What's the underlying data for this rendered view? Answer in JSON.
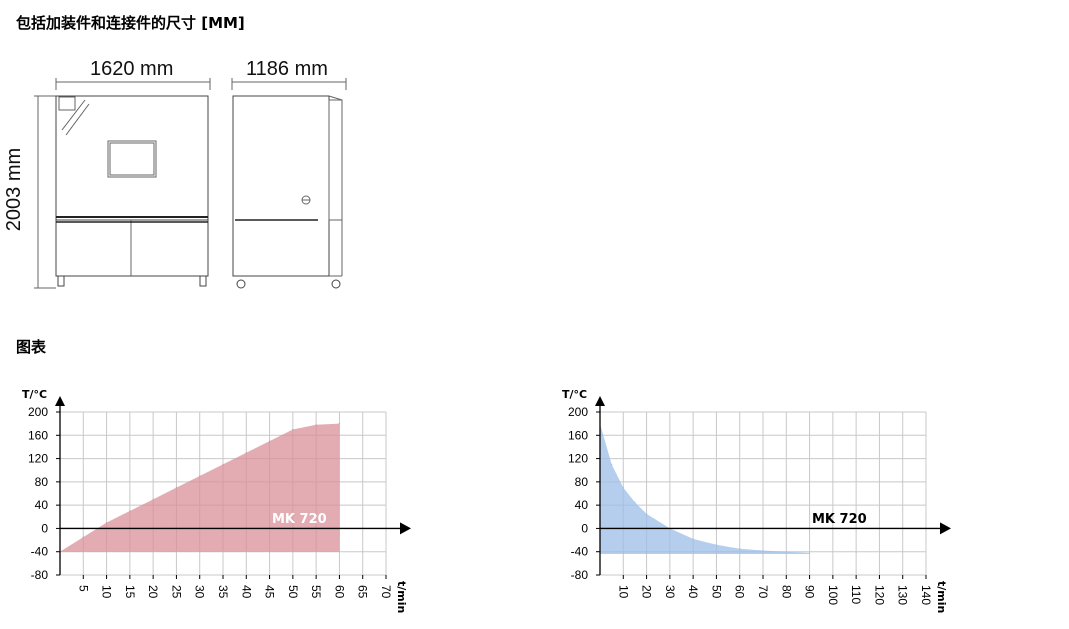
{
  "section_titles": {
    "dimensions": "包括加装件和连接件的尺寸 [MM]",
    "charts": "图表"
  },
  "dimensions": {
    "width": "1620 mm",
    "depth": "1186 mm",
    "height": "2003 mm"
  },
  "colors": {
    "heating": "#d98f98",
    "cooling": "#9ebde8",
    "grid": "#c8c8c8"
  },
  "chart_data": [
    {
      "type": "area",
      "ylabel": "T/°C",
      "xlabel": "t/min",
      "series_label": "MK 720",
      "yticks": [
        200,
        160,
        120,
        80,
        40,
        0,
        -40,
        -80
      ],
      "xticks": [
        5,
        10,
        15,
        20,
        25,
        30,
        35,
        40,
        45,
        50,
        55,
        60,
        65,
        70
      ],
      "ylim": [
        -80,
        200
      ],
      "xlim": [
        0,
        70
      ],
      "grid": true,
      "x": [
        0,
        5,
        10,
        15,
        20,
        25,
        30,
        35,
        40,
        45,
        50,
        55,
        60
      ],
      "y": [
        -40,
        -15,
        10,
        30,
        50,
        70,
        90,
        110,
        130,
        150,
        170,
        178,
        180
      ]
    },
    {
      "type": "area",
      "ylabel": "T/°C",
      "xlabel": "t/min",
      "series_label": "MK 720",
      "yticks": [
        200,
        160,
        120,
        80,
        40,
        0,
        -40,
        -80
      ],
      "xticks": [
        10,
        20,
        30,
        40,
        50,
        60,
        70,
        80,
        90,
        100,
        110,
        120,
        130,
        140
      ],
      "ylim": [
        -80,
        200
      ],
      "xlim": [
        0,
        140
      ],
      "grid": true,
      "x": [
        0,
        5,
        10,
        15,
        20,
        30,
        40,
        50,
        60,
        70,
        80,
        90
      ],
      "y": [
        180,
        110,
        70,
        45,
        25,
        0,
        -18,
        -28,
        -35,
        -38,
        -40,
        -42
      ]
    }
  ]
}
